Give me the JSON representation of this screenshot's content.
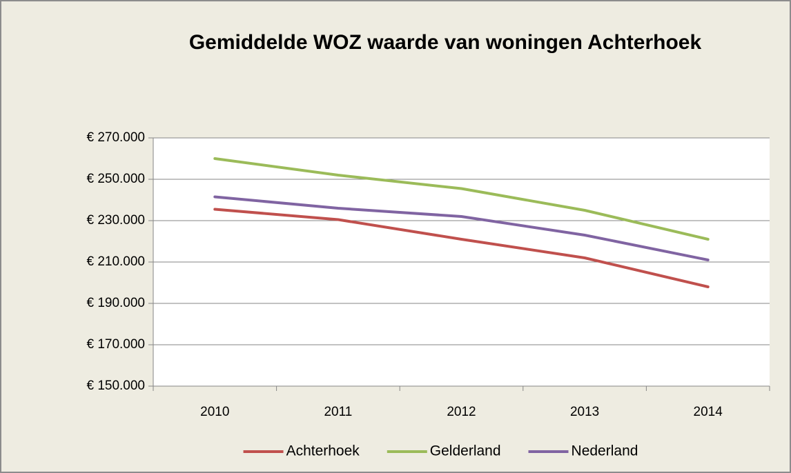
{
  "chart_data": {
    "type": "line",
    "title": "Gemiddelde WOZ waarde van woningen Achterhoek",
    "categories": [
      "2010",
      "2011",
      "2012",
      "2013",
      "2014"
    ],
    "series": [
      {
        "name": "Achterhoek",
        "color": "#c0504d",
        "values": [
          235500,
          230500,
          221000,
          212000,
          198000
        ]
      },
      {
        "name": "Gelderland",
        "color": "#9bbb59",
        "values": [
          260000,
          252000,
          245500,
          235000,
          221000
        ]
      },
      {
        "name": "Nederland",
        "color": "#8064a2",
        "values": [
          241500,
          236000,
          232000,
          223000,
          211000
        ]
      }
    ],
    "ylim": [
      150000,
      270000
    ],
    "yticks": [
      {
        "value": 150000,
        "label": "€ 150.000"
      },
      {
        "value": 170000,
        "label": "€ 170.000"
      },
      {
        "value": 190000,
        "label": "€ 190.000"
      },
      {
        "value": 210000,
        "label": "€ 210.000"
      },
      {
        "value": 230000,
        "label": "€ 230.000"
      },
      {
        "value": 250000,
        "label": "€ 250.000"
      },
      {
        "value": 270000,
        "label": "€ 270.000"
      }
    ],
    "grid": true,
    "legend": "bottom"
  }
}
